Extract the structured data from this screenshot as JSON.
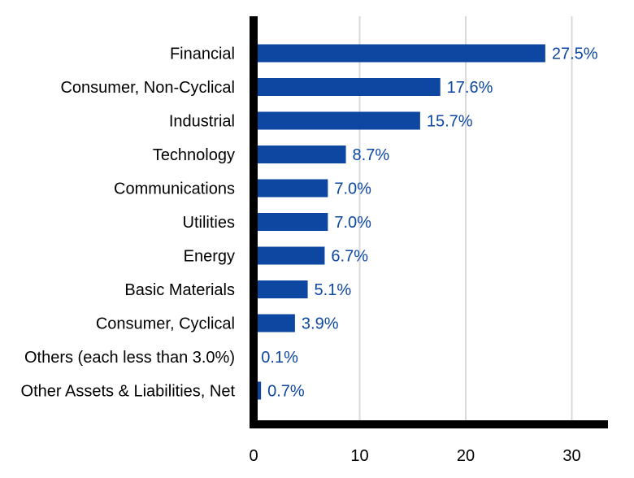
{
  "chart_data": {
    "type": "bar",
    "orientation": "horizontal",
    "categories": [
      "Financial",
      "Consumer, Non-Cyclical",
      "Industrial",
      "Technology",
      "Communications",
      "Utilities",
      "Energy",
      "Basic Materials",
      "Consumer, Cyclical",
      "Others (each less than 3.0%)",
      "Other Assets & Liabilities, Net"
    ],
    "values": [
      27.5,
      17.6,
      15.7,
      8.7,
      7.0,
      7.0,
      6.7,
      5.1,
      3.9,
      0.1,
      0.7
    ],
    "value_labels": [
      "27.5%",
      "17.6%",
      "15.7%",
      "8.7%",
      "7.0%",
      "7.0%",
      "6.7%",
      "5.1%",
      "3.9%",
      "0.1%",
      "0.7%"
    ],
    "title": "",
    "xlabel": "",
    "ylabel": "",
    "xlim": [
      0,
      33
    ],
    "xticks": [
      0,
      10,
      20,
      30
    ],
    "xtick_labels": [
      "0",
      "10",
      "20",
      "30"
    ],
    "grid": "vertical",
    "legend": "none",
    "colors": {
      "bar": "#0d47a1",
      "value_label": "#0d47a1",
      "axis": "#000000",
      "grid": "#d9d9d9"
    }
  }
}
